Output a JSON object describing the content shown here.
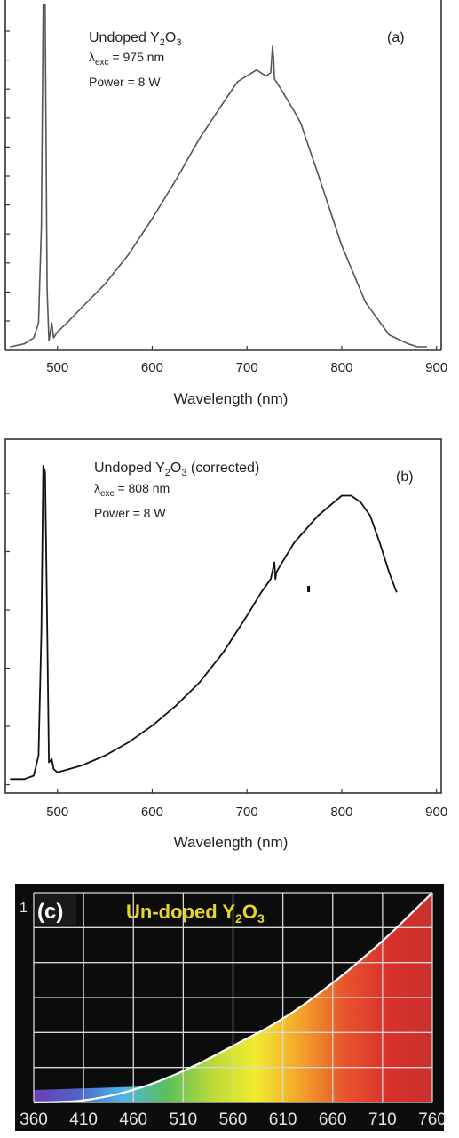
{
  "chart_data": [
    {
      "panel": "(a)",
      "type": "line",
      "title_parts": [
        "Undoped Y",
        "2",
        "O",
        "3"
      ],
      "excitation_parts": [
        "λ",
        "exc",
        " = 975 nm"
      ],
      "power": "Power = 8 W",
      "xlabel": "Wavelength (nm)",
      "ylabel": "",
      "xticks": [
        500,
        600,
        700,
        800,
        900
      ],
      "xlim": [
        445,
        905
      ],
      "ylim": [
        0,
        1.15
      ],
      "grid": false,
      "series": [
        {
          "x": [
            450,
            465,
            475,
            480,
            483,
            485,
            486,
            487,
            488,
            489,
            491,
            494,
            496,
            498,
            500,
            510,
            525,
            550,
            575,
            600,
            625,
            650,
            675,
            690,
            700,
            710,
            720,
            725,
            727,
            728,
            729,
            735,
            750,
            757,
            760,
            775,
            800,
            825,
            850,
            870,
            880,
            890
          ],
          "y": [
            0.0,
            0.01,
            0.03,
            0.08,
            0.4,
            1.15,
            1.15,
            1.15,
            0.7,
            0.2,
            0.02,
            0.08,
            0.03,
            0.04,
            0.05,
            0.08,
            0.13,
            0.21,
            0.31,
            0.43,
            0.56,
            0.7,
            0.82,
            0.89,
            0.91,
            0.93,
            0.91,
            0.92,
            1.01,
            0.97,
            0.9,
            0.87,
            0.79,
            0.75,
            0.72,
            0.58,
            0.34,
            0.15,
            0.04,
            0.01,
            0.0,
            0.0
          ]
        }
      ]
    },
    {
      "panel": "(b)",
      "type": "line",
      "title_parts": [
        "Undoped Y",
        "2",
        "O",
        "3",
        " (corrected)"
      ],
      "excitation_parts": [
        "λ",
        "exc",
        " = 808 nm"
      ],
      "power": "Power =  8 W",
      "xlabel": "Wavelength (nm)",
      "ylabel": "",
      "xticks": [
        500,
        600,
        700,
        800,
        900
      ],
      "xlim": [
        445,
        905
      ],
      "ylim": [
        0,
        1.0
      ],
      "grid": false,
      "series": [
        {
          "x": [
            450,
            465,
            475,
            480,
            483,
            485,
            487,
            489,
            491,
            494,
            496,
            500,
            525,
            550,
            575,
            600,
            625,
            650,
            675,
            700,
            715,
            725,
            729,
            730,
            731,
            735,
            750,
            775,
            800,
            810,
            820,
            830,
            840,
            850,
            858
          ],
          "y": [
            0.01,
            0.01,
            0.02,
            0.08,
            0.45,
            0.95,
            0.93,
            0.5,
            0.06,
            0.07,
            0.04,
            0.03,
            0.05,
            0.08,
            0.12,
            0.17,
            0.23,
            0.3,
            0.39,
            0.5,
            0.57,
            0.61,
            0.66,
            0.61,
            0.63,
            0.65,
            0.72,
            0.8,
            0.86,
            0.86,
            0.84,
            0.8,
            0.72,
            0.63,
            0.57
          ]
        }
      ],
      "annotation_mark": {
        "x": 765,
        "y": 0.58
      }
    },
    {
      "panel": "(c)",
      "type": "area",
      "panel_label": "(c)",
      "title_parts": [
        "Un-doped Y",
        "2",
        "O",
        "3"
      ],
      "y_top_label": "1",
      "xlabel": "",
      "ylabel": "",
      "xticks": [
        360,
        410,
        460,
        510,
        560,
        610,
        660,
        710,
        760
      ],
      "xlim": [
        360,
        760
      ],
      "ylim": [
        0,
        1
      ],
      "grid": true,
      "series": [
        {
          "x": [
            360,
            410,
            460,
            510,
            560,
            610,
            660,
            710,
            760
          ],
          "y": [
            0.0,
            0.01,
            0.06,
            0.15,
            0.27,
            0.4,
            0.57,
            0.77,
            1.0
          ]
        }
      ],
      "spectrum_colors": [
        "#6a3fb5",
        "#4f64c8",
        "#4fb6e8",
        "#59c05a",
        "#b9d93a",
        "#f2ec30",
        "#f3a52a",
        "#e8552d",
        "#d9312b",
        "#c9302d"
      ],
      "colors": {
        "background": "#0c0c0c",
        "grid": "#d8d8d8",
        "fit_line": "#ffffff",
        "title": "#e6d62a",
        "tick": "#e6e6e6"
      }
    }
  ]
}
